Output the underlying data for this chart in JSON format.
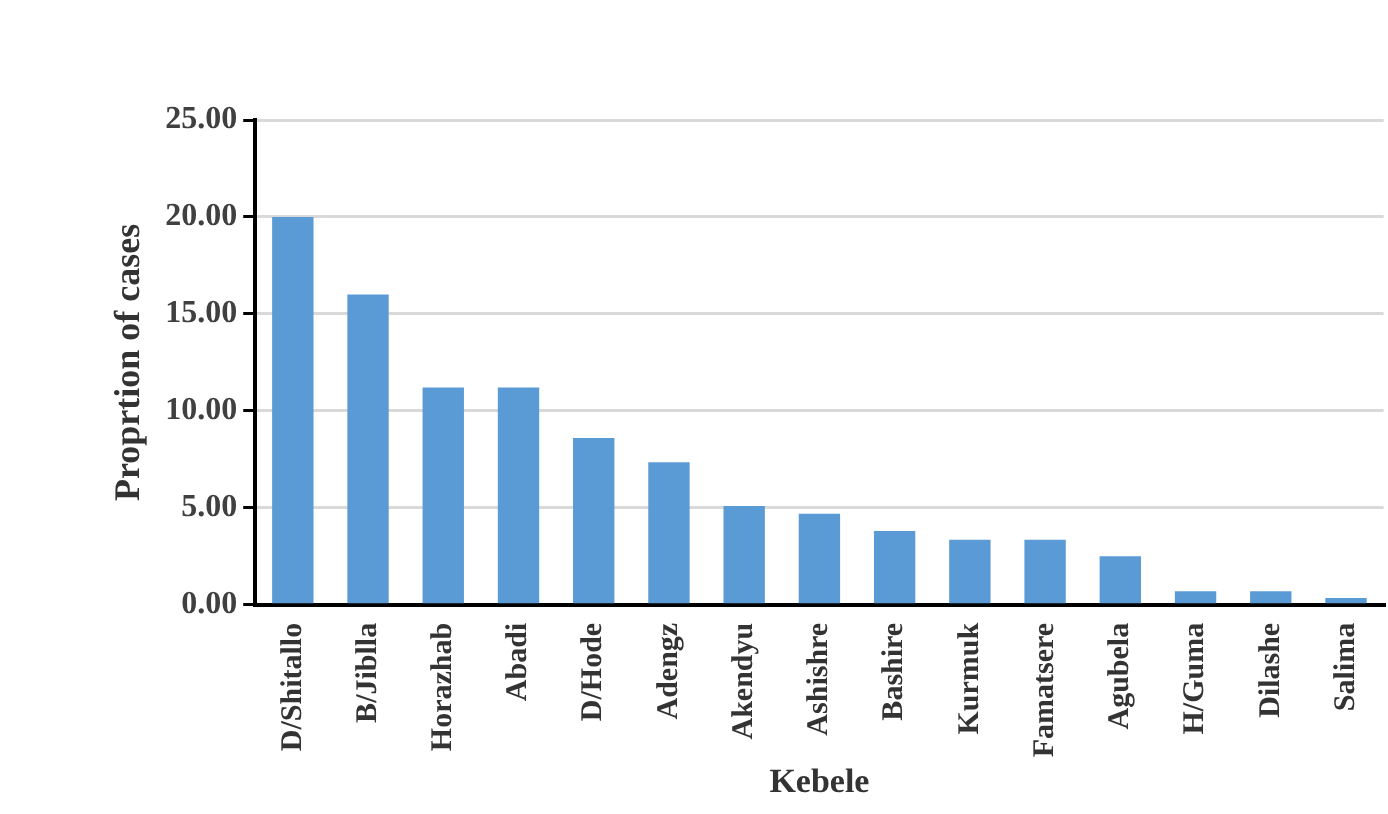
{
  "chart_data": {
    "type": "bar",
    "xlabel": "Kebele",
    "ylabel": "Proprtion of cases",
    "categories": [
      "D/Shitallo",
      "B/Jiblla",
      "Horazhab",
      "Abadi",
      "D/Hode",
      "Adengz",
      "Akendyu",
      "Ashishre",
      "Bashire",
      "Kurmuk",
      "Famatsere",
      "Agubela",
      "H/Guma",
      "Dilashe",
      "Salima"
    ],
    "values": [
      20.0,
      16.0,
      11.2,
      11.2,
      8.6,
      7.35,
      5.1,
      4.7,
      3.8,
      3.35,
      3.35,
      2.5,
      0.7,
      0.7,
      0.35
    ],
    "color": "#5b9bd5",
    "ylim": [
      0,
      25
    ],
    "yticks": [
      {
        "value": 0,
        "label": "0.00"
      },
      {
        "value": 5,
        "label": "5.00"
      },
      {
        "value": 10,
        "label": "10.00"
      },
      {
        "value": 15,
        "label": "15.00"
      },
      {
        "value": 20,
        "label": "20.00"
      },
      {
        "value": 25,
        "label": "25.00"
      }
    ],
    "grid": "y",
    "legend": false
  }
}
